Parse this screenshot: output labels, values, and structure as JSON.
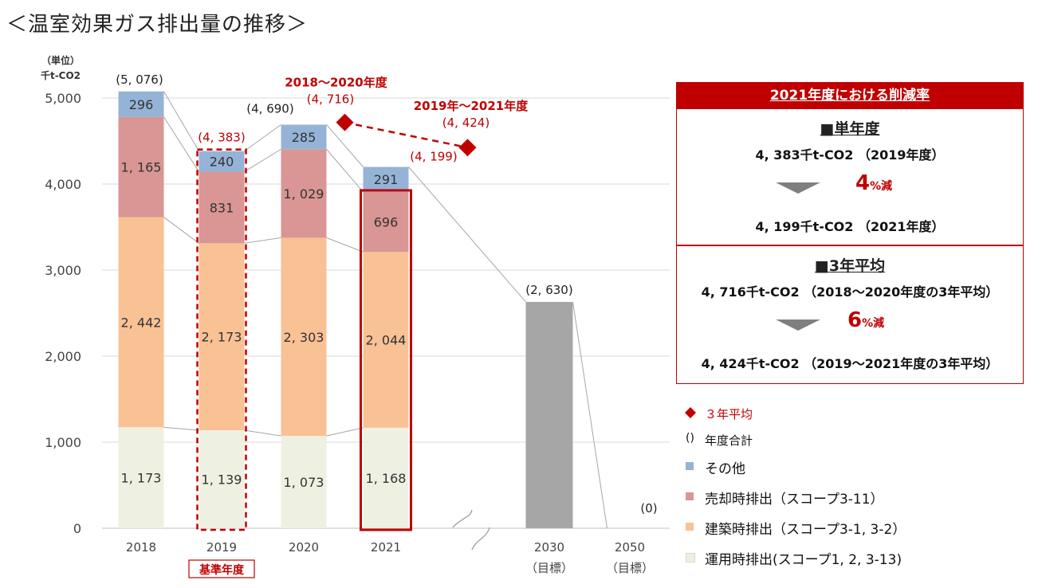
{
  "title": "＜温室効果ガス排出量の推移＞",
  "chart_data": {
    "type": "bar",
    "stacked": true,
    "y_unit_label": "（単位）",
    "y_unit": "千t-CO2",
    "ylim": [
      0,
      5000
    ],
    "yticks": [
      "0",
      "1,000",
      "2,000",
      "3,000",
      "4,000",
      "5,000"
    ],
    "categories": [
      {
        "label": "2018",
        "sub": ""
      },
      {
        "label": "2019",
        "sub": ""
      },
      {
        "label": "2020",
        "sub": ""
      },
      {
        "label": "2021",
        "sub": ""
      },
      {
        "label": "2030",
        "sub": "（目標）"
      },
      {
        "label": "2050",
        "sub": "（目標）"
      }
    ],
    "series": [
      {
        "name": "運用時排出(スコープ1, 2, 3-13)",
        "color": "#eef0e2",
        "values": [
          1173,
          1139,
          1073,
          1168,
          null,
          null
        ],
        "labels": [
          "1, 173",
          "1, 139",
          "1, 073",
          "1, 168",
          "",
          ""
        ]
      },
      {
        "name": "建築時排出（スコープ3-1, 3-2）",
        "color": "#f8c295",
        "values": [
          2442,
          2173,
          2303,
          2044,
          null,
          null
        ],
        "labels": [
          "2, 442",
          "2, 173",
          "2, 303",
          "2, 044",
          "",
          ""
        ]
      },
      {
        "name": "売却時排出（スコープ3-11）",
        "color": "#d99694",
        "values": [
          1165,
          831,
          1029,
          696,
          null,
          null
        ],
        "labels": [
          "1, 165",
          "831",
          "1, 029",
          "696",
          "",
          ""
        ]
      },
      {
        "name": "その他",
        "color": "#95b3d7",
        "values": [
          296,
          240,
          285,
          291,
          null,
          null
        ],
        "labels": [
          "296",
          "240",
          "285",
          "291",
          "",
          ""
        ]
      }
    ],
    "target_bars": [
      {
        "category_index": 4,
        "value": 2630,
        "color": "#a6a6a6"
      }
    ],
    "totals": [
      {
        "category_index": 0,
        "value": 5076,
        "label": "(5, 076)",
        "color": "#222222"
      },
      {
        "category_index": 1,
        "value": 4383,
        "label": "(4, 383)",
        "color": "#c00000"
      },
      {
        "category_index": 2,
        "value": 4690,
        "label": "(4, 690)",
        "color": "#222222"
      },
      {
        "category_index": 3,
        "value": 4199,
        "label": "(4, 199)",
        "color": "#c00000"
      },
      {
        "category_index": 4,
        "value": 2630,
        "label": "(2, 630)",
        "color": "#222222"
      },
      {
        "category_index": 5,
        "value": 0,
        "label": "(0)",
        "color": "#222222"
      }
    ],
    "averages": [
      {
        "between": [
          2,
          3
        ],
        "value": 4716,
        "title": "2018～2020年度",
        "label": "(4, 716)"
      },
      {
        "between": [
          3,
          4
        ],
        "value": 4424,
        "title": "2019年～2021年度",
        "label": "(4, 424)"
      }
    ],
    "base_year_label": "基準年度",
    "average_color": "#c00000"
  },
  "panel": {
    "header": "2021年度における削減率",
    "single": {
      "heading": "■単年度",
      "line1": "4, 383千t-CO2 （2019年度）",
      "rate": "4",
      "rate_unit": "%減",
      "line2": "4, 199千t-CO2 （2021年度）"
    },
    "three": {
      "heading": "■3年平均",
      "line1": "4, 716千t-CO2 （2018～2020年度の3年平均）",
      "rate": "6",
      "rate_unit": "%減",
      "line2": "4, 424千t-CO2 （2019～2021年度の3年平均）"
    }
  },
  "legend": {
    "avg": "３年平均",
    "total_mark": "()",
    "total": "年度合計",
    "items": [
      {
        "label": "その他",
        "color": "#95b3d7"
      },
      {
        "label": "売却時排出（スコープ3-11）",
        "color": "#d99694"
      },
      {
        "label": "建築時排出（スコープ3-1, 3-2）",
        "color": "#f8c295"
      },
      {
        "label": "運用時排出(スコープ1, 2, 3-13)",
        "color": "#eef0e2"
      }
    ]
  }
}
